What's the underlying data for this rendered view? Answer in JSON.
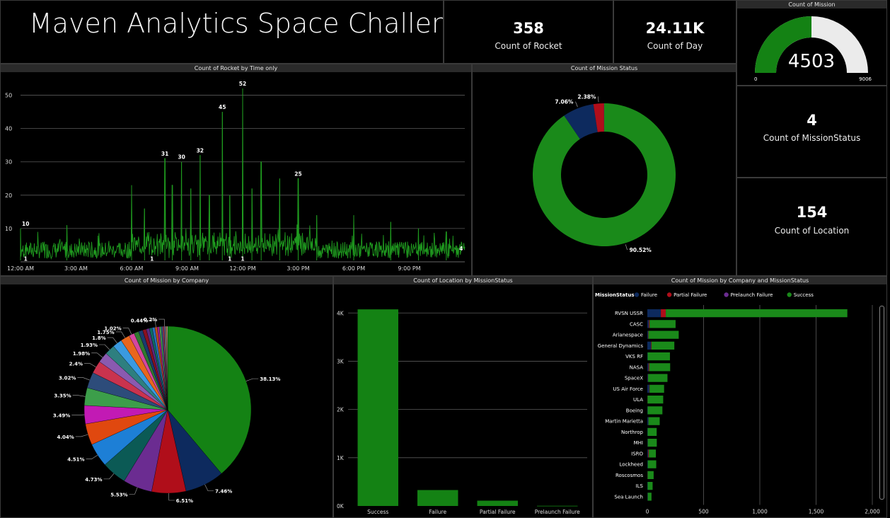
{
  "title": "Maven Analytics Space Challenge",
  "colors": {
    "success": "#1a8a1a",
    "failure": "#0d2a5e",
    "partial": "#b00e1a",
    "prelaunch": "#6b2c91",
    "grid": "#5a5a5a"
  },
  "cards": {
    "rocket": {
      "value": "358",
      "label": "Count of Rocket"
    },
    "day": {
      "value": "24.11K",
      "label": "Count of Day"
    },
    "missionstatus": {
      "value": "4",
      "label": "Count of MissionStatus"
    },
    "location": {
      "value": "154",
      "label": "Count of Location"
    }
  },
  "gauge": {
    "title": "Count of Mission",
    "value": 4503,
    "value_label": "4503",
    "min_label": "0",
    "max_label": "9006",
    "min": 0,
    "max": 9006
  },
  "chart_data": [
    {
      "id": "time",
      "type": "line",
      "title": "Count of Rocket by Time only",
      "x_ticks": [
        "12:00 AM",
        "3:00 AM",
        "6:00 AM",
        "9:00 AM",
        "12:00 PM",
        "3:00 PM",
        "6:00 PM",
        "9:00 PM"
      ],
      "y_ticks": [
        "10",
        "20",
        "30",
        "40",
        "50"
      ],
      "ylim": [
        0,
        55
      ],
      "grid": true,
      "peaks": [
        {
          "t": 0.0,
          "v": 10
        },
        {
          "t": 2.5,
          "v": 11
        },
        {
          "t": 6.0,
          "v": 23
        },
        {
          "t": 6.7,
          "v": 16
        },
        {
          "t": 7.8,
          "v": 31
        },
        {
          "t": 8.2,
          "v": 23
        },
        {
          "t": 8.7,
          "v": 30
        },
        {
          "t": 9.2,
          "v": 22
        },
        {
          "t": 9.7,
          "v": 32
        },
        {
          "t": 10.2,
          "v": 20
        },
        {
          "t": 10.9,
          "v": 45
        },
        {
          "t": 11.3,
          "v": 20
        },
        {
          "t": 12.0,
          "v": 52
        },
        {
          "t": 12.5,
          "v": 22
        },
        {
          "t": 13.0,
          "v": 30
        },
        {
          "t": 14.0,
          "v": 25
        },
        {
          "t": 15.0,
          "v": 25
        },
        {
          "t": 16.0,
          "v": 14
        },
        {
          "t": 18.0,
          "v": 14
        },
        {
          "t": 20.0,
          "v": 12
        },
        {
          "t": 21.5,
          "v": 10
        },
        {
          "t": 23.0,
          "v": 9
        }
      ],
      "data_labels": [
        {
          "t": 0.0,
          "v": 10,
          "label": "10"
        },
        {
          "t": 7.8,
          "v": 31,
          "label": "31"
        },
        {
          "t": 8.7,
          "v": 30,
          "label": "30"
        },
        {
          "t": 9.7,
          "v": 32,
          "label": "32"
        },
        {
          "t": 10.9,
          "v": 45,
          "label": "45"
        },
        {
          "t": 12.0,
          "v": 52,
          "label": "52"
        },
        {
          "t": 15.0,
          "v": 25,
          "label": "25"
        },
        {
          "t": 0.1,
          "v": 1,
          "label": "1"
        },
        {
          "t": 7.1,
          "v": 1,
          "label": "1"
        },
        {
          "t": 11.3,
          "v": 1,
          "label": "1"
        },
        {
          "t": 12.0,
          "v": 1,
          "label": "1"
        },
        {
          "t": 23.8,
          "v": 4,
          "label": "4"
        }
      ]
    },
    {
      "id": "status",
      "type": "pie",
      "title": "Count of Mission Status",
      "slices": [
        {
          "name": "Success",
          "value": 90.52,
          "label": "90.52%",
          "color": "#1a8a1a"
        },
        {
          "name": "Failure",
          "value": 7.06,
          "label": "7.06%",
          "color": "#0d2a5e"
        },
        {
          "name": "Partial Failure",
          "value": 2.38,
          "label": "2.38%",
          "color": "#b00e1a"
        },
        {
          "name": "Prelaunch Failure",
          "value": 0.04,
          "label": "",
          "color": "#6b2c91"
        }
      ]
    },
    {
      "id": "company",
      "type": "pie",
      "title": "Count of Mission by Company",
      "slices": [
        {
          "value": 38.13,
          "label": "38.13%",
          "color": "#148214"
        },
        {
          "value": 7.46,
          "label": "7.46%",
          "color": "#0d2a5e"
        },
        {
          "value": 6.51,
          "label": "6.51%",
          "color": "#b00e1a"
        },
        {
          "value": 5.53,
          "label": "5.53%",
          "color": "#6b2c91"
        },
        {
          "value": 4.73,
          "label": "4.73%",
          "color": "#0b5a55"
        },
        {
          "value": 4.51,
          "label": "4.51%",
          "color": "#1d7fd6"
        },
        {
          "value": 4.04,
          "label": "4.04%",
          "color": "#e0480f"
        },
        {
          "value": 3.49,
          "label": "3.49%",
          "color": "#c21ab4"
        },
        {
          "value": 3.35,
          "label": "3.35%",
          "color": "#3c9e4a"
        },
        {
          "value": 3.02,
          "label": "3.02%",
          "color": "#2d4c7a"
        },
        {
          "value": 2.4,
          "label": "2.4%",
          "color": "#c9334e"
        },
        {
          "value": 1.98,
          "label": "1.98%",
          "color": "#8a5ab0"
        },
        {
          "value": 1.93,
          "label": "1.93%",
          "color": "#2e7f7f"
        },
        {
          "value": 1.8,
          "label": "1.8%",
          "color": "#3a9ae0"
        },
        {
          "value": 1.75,
          "label": "1.75%",
          "color": "#e8661e"
        },
        {
          "value": 1.02,
          "label": "1.02%",
          "color": "#d447a0"
        },
        {
          "value": 0.9,
          "label": "",
          "color": "#2f7a2f"
        },
        {
          "value": 0.8,
          "label": "",
          "color": "#1a3a70"
        },
        {
          "value": 0.7,
          "label": "",
          "color": "#8a1020"
        },
        {
          "value": 0.6,
          "label": "",
          "color": "#5a2a80"
        },
        {
          "value": 0.55,
          "label": "",
          "color": "#0e6b63"
        },
        {
          "value": 0.5,
          "label": "",
          "color": "#2a6fbf"
        },
        {
          "value": 0.44,
          "label": "0.44%",
          "color": "#c0501a"
        },
        {
          "value": 0.4,
          "label": "",
          "color": "#a01a90"
        },
        {
          "value": 0.35,
          "label": "",
          "color": "#4aa050"
        },
        {
          "value": 0.3,
          "label": "",
          "color": "#3a5a8a"
        },
        {
          "value": 0.25,
          "label": "",
          "color": "#b03a50"
        },
        {
          "value": 0.2,
          "label": "0.2%",
          "color": "#7a5aa0"
        },
        {
          "value": 0.18,
          "label": "",
          "color": "#aaaaaa"
        },
        {
          "value": 0.16,
          "label": "",
          "color": "#d08040"
        },
        {
          "value": 0.14,
          "label": "",
          "color": "#cccccc"
        }
      ]
    },
    {
      "id": "location",
      "type": "bar",
      "title": "Count of Location by MissionStatus",
      "categories": [
        "Success",
        "Failure",
        "Partial Failure",
        "Prelaunch Failure"
      ],
      "values": [
        4075,
        330,
        110,
        4
      ],
      "y_ticks": [
        {
          "v": 0,
          "label": "0K"
        },
        {
          "v": 1000,
          "label": "1K"
        },
        {
          "v": 2000,
          "label": "2K"
        },
        {
          "v": 3000,
          "label": "3K"
        },
        {
          "v": 4000,
          "label": "4K"
        }
      ],
      "ylim": [
        0,
        4400
      ],
      "grid": true
    },
    {
      "id": "company_status",
      "type": "bar",
      "orientation": "horizontal",
      "stacked": true,
      "title": "Count of Mission by Company and MissionStatus",
      "legend_title": "MissionStatus",
      "legend": [
        "Failure",
        "Partial Failure",
        "Prelaunch Failure",
        "Success"
      ],
      "categories": [
        "RVSN USSR",
        "CASC",
        "Arianespace",
        "General Dynamics",
        "VKS RF",
        "NASA",
        "SpaceX",
        "US Air Force",
        "ULA",
        "Boeing",
        "Martin Marietta",
        "Northrop",
        "MHI",
        "ISRO",
        "Lockheed",
        "Roscosmos",
        "ILS",
        "Sea Launch"
      ],
      "series": [
        {
          "name": "Failure",
          "values": [
            120,
            14,
            7,
            33,
            3,
            11,
            5,
            17,
            1,
            3,
            9,
            3,
            3,
            8,
            4,
            2,
            3,
            3
          ]
        },
        {
          "name": "Partial Failure",
          "values": [
            44,
            6,
            3,
            4,
            0,
            6,
            1,
            3,
            1,
            0,
            1,
            0,
            1,
            5,
            0,
            1,
            0,
            1
          ]
        },
        {
          "name": "Prelaunch Failure",
          "values": [
            0,
            0,
            0,
            0,
            0,
            0,
            1,
            0,
            0,
            0,
            0,
            0,
            0,
            0,
            0,
            0,
            0,
            0
          ]
        },
        {
          "name": "Success",
          "values": [
            1614,
            231,
            269,
            203,
            198,
            186,
            172,
            129,
            139,
            131,
            100,
            80,
            80,
            63,
            75,
            53,
            44,
            33
          ]
        }
      ],
      "x_ticks": [
        {
          "v": 0,
          "label": "0"
        },
        {
          "v": 500,
          "label": "500"
        },
        {
          "v": 1000,
          "label": "1,000"
        },
        {
          "v": 1500,
          "label": "1,500"
        },
        {
          "v": 2000,
          "label": "2,000"
        }
      ],
      "xlim": [
        0,
        2000
      ],
      "grid": true
    }
  ]
}
